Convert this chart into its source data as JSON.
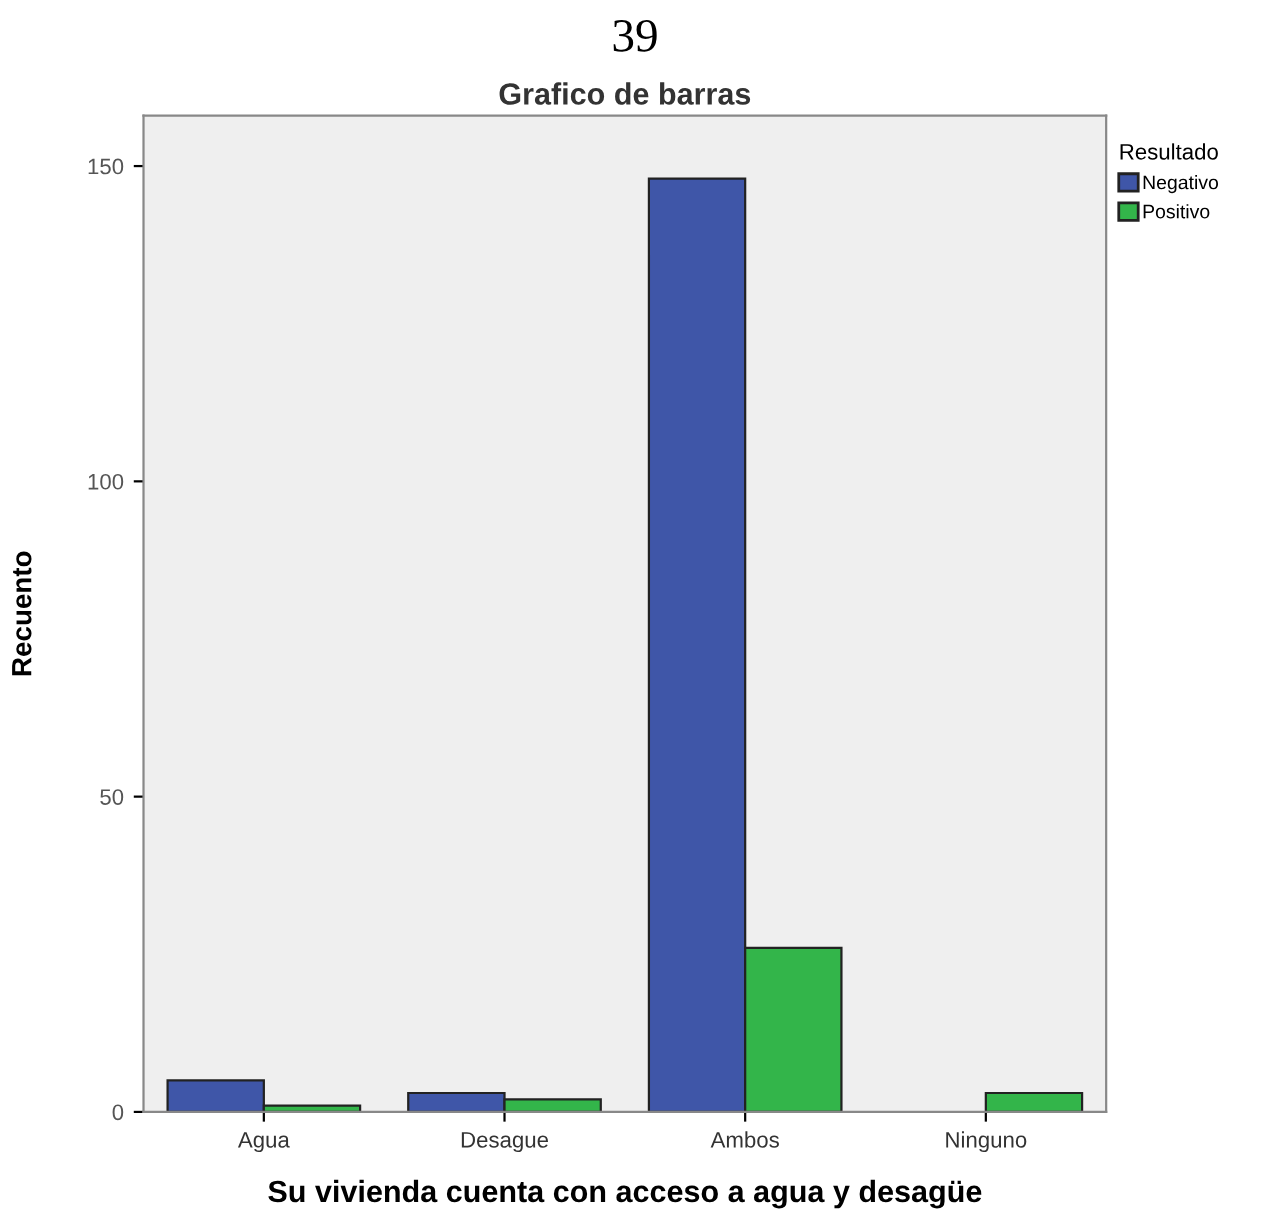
{
  "chart_data": {
    "type": "bar",
    "title": "Grafico de barras",
    "xlabel": "Su vivienda cuenta con acceso a agua y desagüe",
    "ylabel": "Recuento",
    "legend_title": "Resultado",
    "annotations": [
      "39"
    ],
    "categories": [
      "Agua",
      "Desague",
      "Ambos",
      "Ninguno"
    ],
    "series": [
      {
        "name": "Negativo",
        "color": "#3f56a8",
        "values": [
          5,
          3,
          148,
          null
        ]
      },
      {
        "name": "Positivo",
        "color": "#33b54a",
        "values": [
          1,
          2,
          26,
          3
        ]
      }
    ],
    "ylim": [
      0,
      158
    ],
    "yticks": [
      0,
      50,
      100,
      150
    ],
    "grid": false,
    "legend": "top right"
  }
}
